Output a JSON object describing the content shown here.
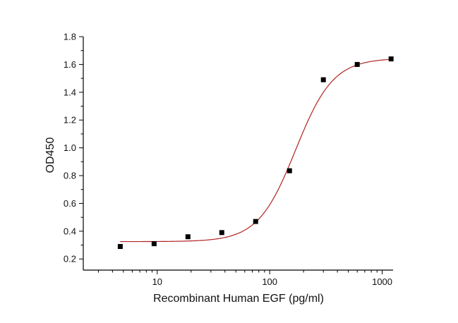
{
  "chart_data": {
    "type": "scatter",
    "title": "",
    "xlabel": "Recombinant Human EGF (pg/ml)",
    "ylabel": "OD450",
    "xscale": "log",
    "xlim": [
      2.2,
      1250
    ],
    "ylim": [
      0.12,
      1.8
    ],
    "x_ticks": [
      10,
      100,
      1000
    ],
    "x_tick_labels": [
      "10",
      "100",
      "1000"
    ],
    "y_ticks": [
      0.2,
      0.4,
      0.6,
      0.8,
      1.0,
      1.2,
      1.4,
      1.6,
      1.8
    ],
    "y_tick_labels": [
      "0.2",
      "0.4",
      "0.6",
      "0.8",
      "1.0",
      "1.2",
      "1.4",
      "1.6",
      "1.8"
    ],
    "grid": false,
    "legend": "none",
    "series": [
      {
        "marker": "square",
        "color": "#000000",
        "x": [
          4.69,
          9.38,
          18.75,
          37.5,
          75,
          150,
          300,
          600,
          1200
        ],
        "y": [
          0.29,
          0.31,
          0.36,
          0.39,
          0.47,
          0.835,
          1.49,
          1.6,
          1.64
        ]
      }
    ],
    "fit_curve": {
      "model": "4PL",
      "color": "#b22222",
      "bottom": 0.325,
      "top": 1.645,
      "ec50": 170,
      "hill": 2.6
    }
  }
}
